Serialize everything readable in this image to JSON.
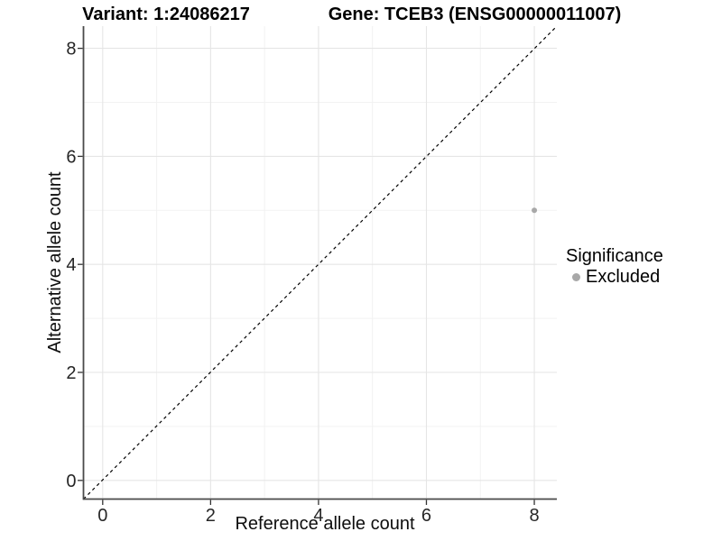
{
  "header": {
    "variant_title": "Variant: 1:24086217",
    "gene_title": "Gene: TCEB3 (ENSG00000011007)"
  },
  "axes": {
    "x_title": "Reference allele count",
    "y_title": "Alternative allele count"
  },
  "legend": {
    "title": "Significance",
    "items": [
      {
        "label": "Excluded",
        "color": "#a8a8a8"
      }
    ]
  },
  "chart_data": {
    "type": "scatter",
    "title": "Variant: 1:24086217 / Gene: TCEB3 (ENSG00000011007)",
    "xlabel": "Reference allele count",
    "ylabel": "Alternative allele count",
    "xlim": [
      -0.4,
      8.4
    ],
    "ylim": [
      -0.4,
      8.4
    ],
    "x_ticks": [
      0,
      2,
      4,
      6,
      8
    ],
    "y_ticks": [
      0,
      2,
      4,
      6,
      8
    ],
    "x_minor_ticks": [
      1,
      3,
      5,
      7
    ],
    "y_minor_ticks": [
      1,
      3,
      5,
      7
    ],
    "grid": "major+minor",
    "legend_position": "right",
    "series": [
      {
        "name": "Excluded",
        "color": "#a8a8a8",
        "points": [
          {
            "x": 8,
            "y": 5
          }
        ]
      }
    ],
    "reference_line": {
      "kind": "identity y=x",
      "style": "dashed",
      "color": "#000000"
    },
    "style": {
      "background": "#ffffff",
      "grid_major_color": "#e5e5e5",
      "grid_minor_color": "#f2f2f2",
      "axis_line_color": "#4a4a4a",
      "tick_mark_color": "#333333",
      "tick_label_color": "#262626"
    }
  }
}
